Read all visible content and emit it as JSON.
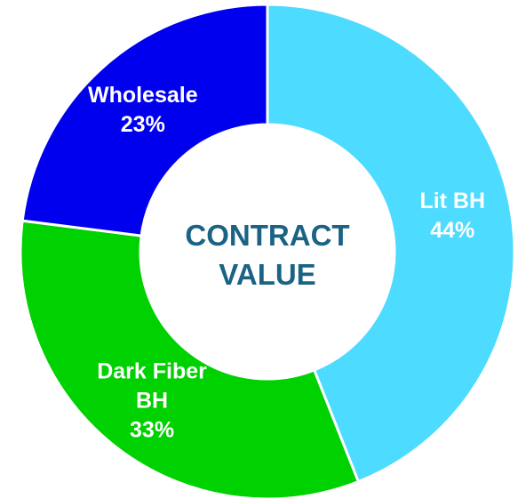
{
  "chart_data": {
    "type": "donut",
    "title": "CONTRACT VALUE",
    "categories": [
      "Lit BH",
      "Dark Fiber BH",
      "Wholesale"
    ],
    "values": [
      44,
      33,
      23
    ],
    "value_labels": [
      "44%",
      "33%",
      "23%"
    ],
    "colors": [
      "#4ddbff",
      "#00d100",
      "#0000ee"
    ]
  }
}
